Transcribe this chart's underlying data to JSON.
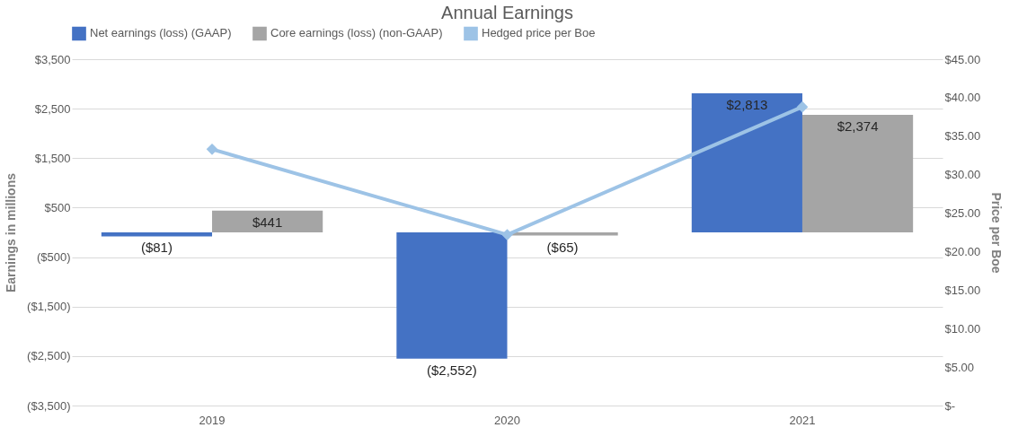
{
  "chart_data": {
    "type": "bar",
    "title": "Annual Earnings",
    "ylabel": "Earnings in millions",
    "y2label": "Price per Boe",
    "categories": [
      "2019",
      "2020",
      "2021"
    ],
    "series": [
      {
        "name": "Net earnings (loss) (GAAP)",
        "color": "#4472c4",
        "values": [
          -81,
          -2552,
          2813
        ],
        "value_labels": [
          "($81)",
          "($2,552)",
          "$2,813"
        ]
      },
      {
        "name": "Core earnings (loss) (non-GAAP)",
        "color": "#a5a5a5",
        "values": [
          441,
          -65,
          2374
        ],
        "value_labels": [
          "$441",
          "($65)",
          "$2,374"
        ]
      },
      {
        "name": "Hedged price per Boe",
        "color": "#9dc3e6",
        "type": "line",
        "axis": "y2",
        "marker": "diamond",
        "values": [
          33.3,
          22.2,
          38.8
        ]
      }
    ],
    "ylim": [
      -3500,
      3500
    ],
    "yticks": [
      {
        "value": -3500,
        "label": "($3,500)"
      },
      {
        "value": -2500,
        "label": "($2,500)"
      },
      {
        "value": -1500,
        "label": "($1,500)"
      },
      {
        "value": -500,
        "label": "($500)"
      },
      {
        "value": 500,
        "label": "$500"
      },
      {
        "value": 1500,
        "label": "$1,500"
      },
      {
        "value": 2500,
        "label": "$2,500"
      },
      {
        "value": 3500,
        "label": "$3,500"
      }
    ],
    "y2lim": [
      0,
      45
    ],
    "y2ticks": [
      {
        "value": 0,
        "label": "$-"
      },
      {
        "value": 5,
        "label": "$5.00"
      },
      {
        "value": 10,
        "label": "$10.00"
      },
      {
        "value": 15,
        "label": "$15.00"
      },
      {
        "value": 20,
        "label": "$20.00"
      },
      {
        "value": 25,
        "label": "$25.00"
      },
      {
        "value": 30,
        "label": "$30.00"
      },
      {
        "value": 35,
        "label": "$35.00"
      },
      {
        "value": 40,
        "label": "$40.00"
      },
      {
        "value": 45,
        "label": "$45.00"
      }
    ],
    "grid": "y",
    "legend": "top"
  }
}
